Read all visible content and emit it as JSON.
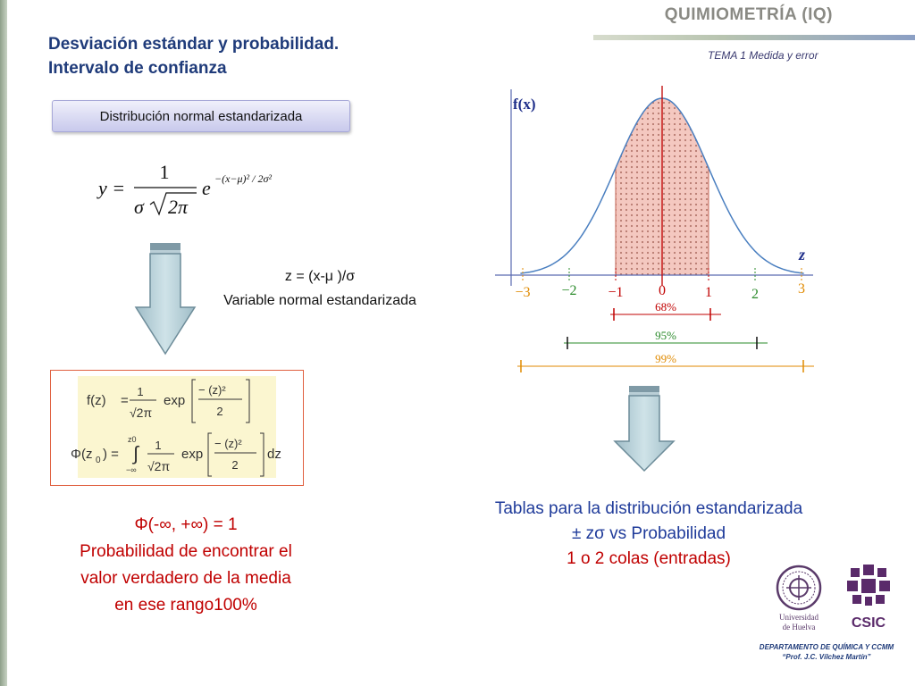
{
  "header": {
    "course": "QUIMIOMETRÍA (IQ)",
    "subtema": "TEMA 1 Medida y error",
    "title_line1": "Desviación estándar y probabilidad.",
    "title_line2": "Intervalo de confianza"
  },
  "tab_label": "Distribución normal estandarizada",
  "formula_main": {
    "lhs": "y =",
    "numerator": "1",
    "denominator_sigma": "σ",
    "denominator_root": "2π",
    "base": "e",
    "exponent": "−(x−μ)² / 2σ²"
  },
  "z_definition": {
    "line1": "z = (x-μ )/σ",
    "line2": "Variable normal estandarizada"
  },
  "formula_box": {
    "f_lhs": "f(z)",
    "f_num": "1",
    "f_den": "√2π",
    "f_exp": "exp",
    "f_bracket_num": "− (z)²",
    "f_bracket_den": "2",
    "phi_lhs": "Φ(z",
    "phi_sub": "0",
    "phi_eq": ") =",
    "int_upper": "z0",
    "int_lower": "−∞",
    "phi_num": "1",
    "phi_den": "√2π",
    "phi_exp": "exp",
    "phi_bracket_num": "− (z)²",
    "phi_bracket_den": "2",
    "dz": "dz"
  },
  "red_text": {
    "line1": "Φ(-∞, +∞) = 1",
    "line2": "Probabilidad de encontrar el",
    "line3": "valor verdadero de la media",
    "line4": "en ese rango100%"
  },
  "blue_text": {
    "line1": "Tablas para la distribución estandarizada",
    "line2": "± zσ vs Probabilidad",
    "line3": "1 o 2 colas (entradas)"
  },
  "chart": {
    "y_label": "f(x)",
    "x_label": "z",
    "ticks": [
      {
        "label": "−3",
        "color": "#e08a00"
      },
      {
        "label": "−2",
        "color": "#2a8a2a"
      },
      {
        "label": "−1",
        "color": "#c00000"
      },
      {
        "label": "0",
        "color": "#c00000"
      },
      {
        "label": "1",
        "color": "#c00000"
      },
      {
        "label": "2",
        "color": "#2a8a2a"
      },
      {
        "label": "3",
        "color": "#e08a00"
      }
    ],
    "bands": [
      {
        "label": "68%",
        "color": "#c00000"
      },
      {
        "label": "95%",
        "color": "#2a8a2a"
      },
      {
        "label": "99%",
        "color": "#e08a00"
      }
    ]
  },
  "logos": {
    "uh_line1": "Universidad",
    "uh_line2": "de Huelva",
    "csic": "CSIC"
  },
  "footer": {
    "line1": "DEPARTAMENTO DE QUÍMICA Y CCMM",
    "line2": "“Prof. J.C. Vílchez Martín”"
  }
}
